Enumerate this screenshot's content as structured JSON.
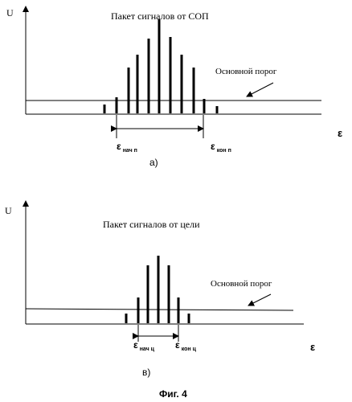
{
  "figure": {
    "caption": "Фиг. 4"
  },
  "panel_a": {
    "axis_y": "U",
    "axis_x": "ε",
    "title": "Пакет сигналов от СОП",
    "threshold_label": "Основной порог",
    "start_label_main": "ε",
    "start_label_sub": "нач п",
    "end_label_main": "ε",
    "end_label_sub": "кон п",
    "panel_label": "а)"
  },
  "panel_b": {
    "axis_y": "U",
    "axis_x": "ε",
    "title": "Пакет сигналов от цели",
    "threshold_label": "Основной порог",
    "start_label_main": "ε",
    "start_label_sub": "нач ц",
    "end_label_main": "ε",
    "end_label_sub": "кон ц",
    "panel_label": "в)"
  }
}
